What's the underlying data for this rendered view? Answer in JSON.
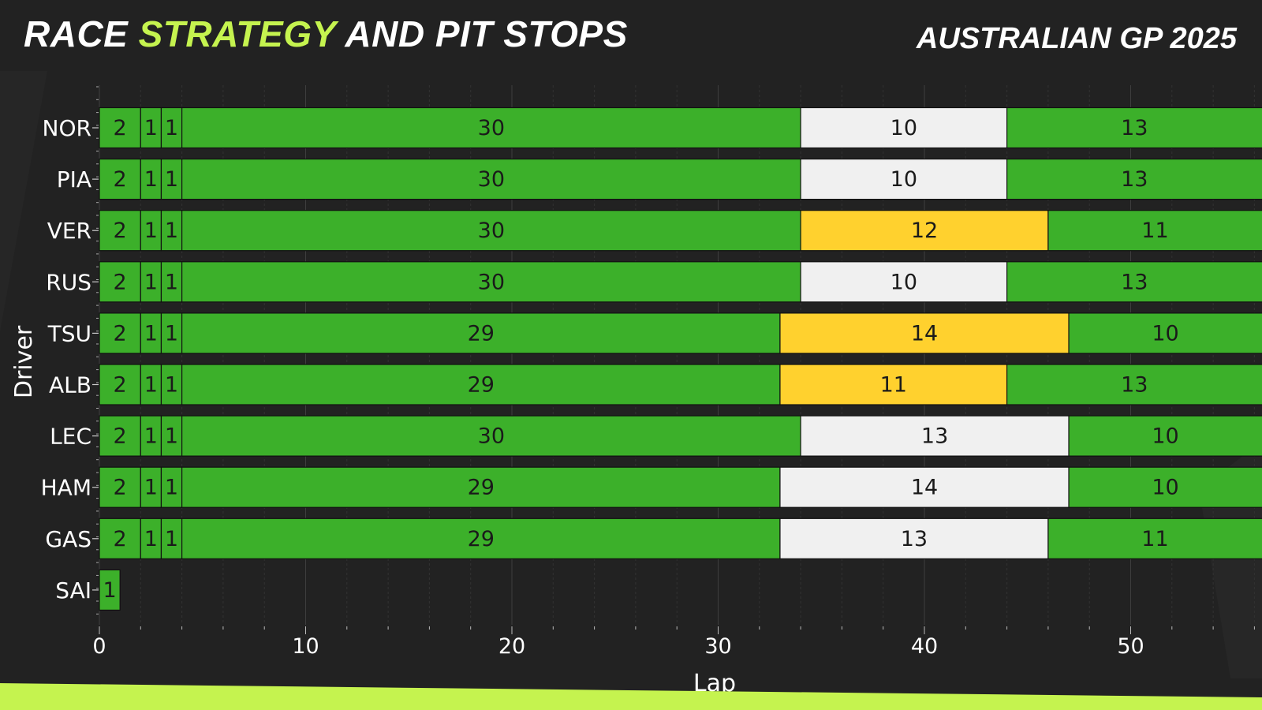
{
  "header": {
    "title_part1": "RACE ",
    "title_accent": "STRATEGY",
    "title_part2": " AND PIT STOPS",
    "event": "AUSTRALIAN GP 2025"
  },
  "colors": {
    "background": "#222222",
    "accent": "#c5f34f",
    "intermediate": "#3cb02a",
    "medium": "#ffd12e",
    "hard": "#f0f0f0",
    "text_dark": "#1a1a1a",
    "text_light": "#ffffff"
  },
  "chart_data": {
    "type": "bar",
    "orientation": "horizontal-stacked",
    "xlabel": "Lap",
    "ylabel": "Driver",
    "xlim": [
      0,
      56.5
    ],
    "xticks": [
      0,
      10,
      20,
      30,
      40,
      50
    ],
    "grid": true,
    "drivers": [
      {
        "name": "NOR",
        "stints": [
          {
            "laps": 2,
            "compound": "intermediate"
          },
          {
            "laps": 1,
            "compound": "intermediate"
          },
          {
            "laps": 1,
            "compound": "intermediate"
          },
          {
            "laps": 30,
            "compound": "intermediate"
          },
          {
            "laps": 10,
            "compound": "hard"
          },
          {
            "laps": 13,
            "compound": "intermediate"
          }
        ]
      },
      {
        "name": "PIA",
        "stints": [
          {
            "laps": 2,
            "compound": "intermediate"
          },
          {
            "laps": 1,
            "compound": "intermediate"
          },
          {
            "laps": 1,
            "compound": "intermediate"
          },
          {
            "laps": 30,
            "compound": "intermediate"
          },
          {
            "laps": 10,
            "compound": "hard"
          },
          {
            "laps": 13,
            "compound": "intermediate"
          }
        ]
      },
      {
        "name": "VER",
        "stints": [
          {
            "laps": 2,
            "compound": "intermediate"
          },
          {
            "laps": 1,
            "compound": "intermediate"
          },
          {
            "laps": 1,
            "compound": "intermediate"
          },
          {
            "laps": 30,
            "compound": "intermediate"
          },
          {
            "laps": 12,
            "compound": "medium"
          },
          {
            "laps": 11,
            "compound": "intermediate"
          }
        ]
      },
      {
        "name": "RUS",
        "stints": [
          {
            "laps": 2,
            "compound": "intermediate"
          },
          {
            "laps": 1,
            "compound": "intermediate"
          },
          {
            "laps": 1,
            "compound": "intermediate"
          },
          {
            "laps": 30,
            "compound": "intermediate"
          },
          {
            "laps": 10,
            "compound": "hard"
          },
          {
            "laps": 13,
            "compound": "intermediate"
          }
        ]
      },
      {
        "name": "TSU",
        "stints": [
          {
            "laps": 2,
            "compound": "intermediate"
          },
          {
            "laps": 1,
            "compound": "intermediate"
          },
          {
            "laps": 1,
            "compound": "intermediate"
          },
          {
            "laps": 29,
            "compound": "intermediate"
          },
          {
            "laps": 14,
            "compound": "medium"
          },
          {
            "laps": 10,
            "compound": "intermediate"
          }
        ]
      },
      {
        "name": "ALB",
        "stints": [
          {
            "laps": 2,
            "compound": "intermediate"
          },
          {
            "laps": 1,
            "compound": "intermediate"
          },
          {
            "laps": 1,
            "compound": "intermediate"
          },
          {
            "laps": 29,
            "compound": "intermediate"
          },
          {
            "laps": 11,
            "compound": "medium"
          },
          {
            "laps": 13,
            "compound": "intermediate"
          }
        ]
      },
      {
        "name": "LEC",
        "stints": [
          {
            "laps": 2,
            "compound": "intermediate"
          },
          {
            "laps": 1,
            "compound": "intermediate"
          },
          {
            "laps": 1,
            "compound": "intermediate"
          },
          {
            "laps": 30,
            "compound": "intermediate"
          },
          {
            "laps": 13,
            "compound": "hard"
          },
          {
            "laps": 10,
            "compound": "intermediate"
          }
        ]
      },
      {
        "name": "HAM",
        "stints": [
          {
            "laps": 2,
            "compound": "intermediate"
          },
          {
            "laps": 1,
            "compound": "intermediate"
          },
          {
            "laps": 1,
            "compound": "intermediate"
          },
          {
            "laps": 29,
            "compound": "intermediate"
          },
          {
            "laps": 14,
            "compound": "hard"
          },
          {
            "laps": 10,
            "compound": "intermediate"
          }
        ]
      },
      {
        "name": "GAS",
        "stints": [
          {
            "laps": 2,
            "compound": "intermediate"
          },
          {
            "laps": 1,
            "compound": "intermediate"
          },
          {
            "laps": 1,
            "compound": "intermediate"
          },
          {
            "laps": 29,
            "compound": "intermediate"
          },
          {
            "laps": 13,
            "compound": "hard"
          },
          {
            "laps": 11,
            "compound": "intermediate"
          }
        ]
      },
      {
        "name": "SAI",
        "stints": [
          {
            "laps": 1,
            "compound": "intermediate"
          }
        ]
      }
    ]
  }
}
